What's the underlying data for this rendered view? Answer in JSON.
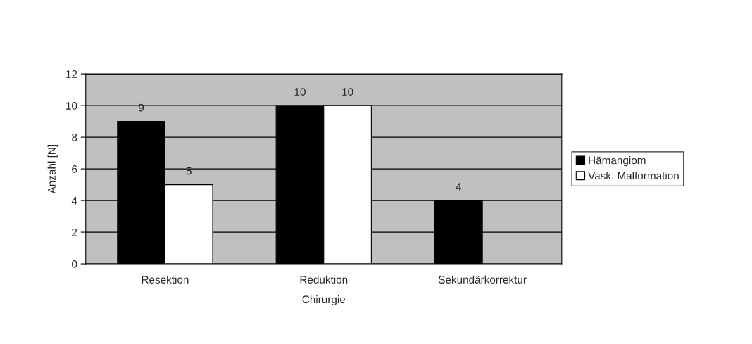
{
  "chart_data": {
    "type": "bar",
    "xlabel": "Chirurgie",
    "ylabel": "Anzahl [N]",
    "categories": [
      "Resektion",
      "Reduktion",
      "Sekundärkorrektur"
    ],
    "series": [
      {
        "name": "Hämangiom",
        "color": "#000000",
        "values": [
          9,
          10,
          4
        ]
      },
      {
        "name": "Vask. Malformation",
        "color": "#ffffff",
        "values": [
          5,
          10,
          null
        ]
      }
    ],
    "ylim": [
      0,
      12
    ],
    "yticks": [
      0,
      2,
      4,
      6,
      8,
      10,
      12
    ],
    "grid": "y",
    "legend": "right",
    "data_labels": true
  }
}
